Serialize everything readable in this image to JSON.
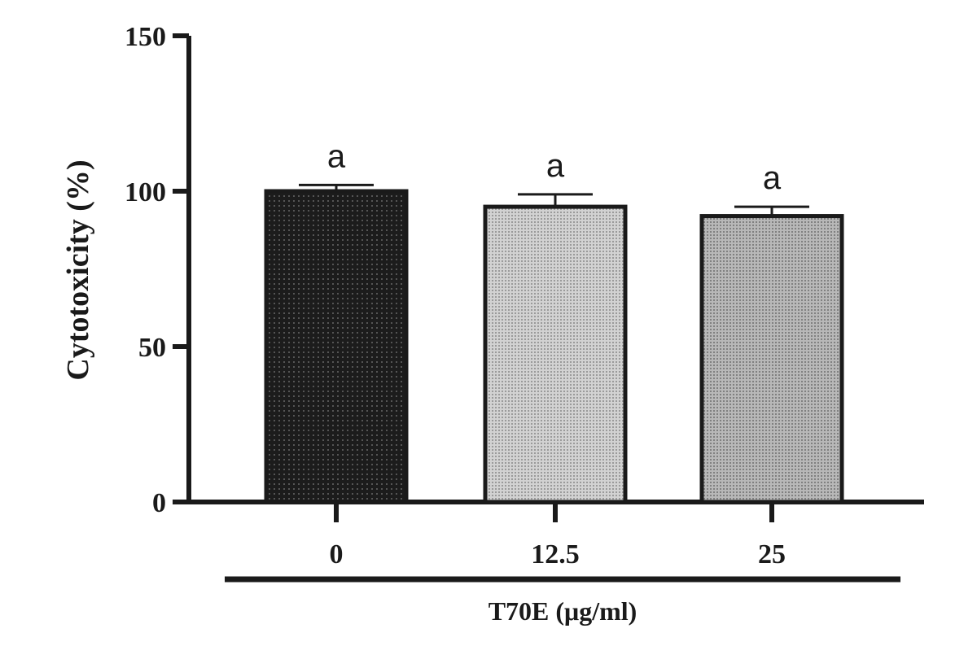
{
  "chart_data": {
    "type": "bar",
    "categories": [
      "0",
      "12.5",
      "25"
    ],
    "values": [
      100,
      95,
      92
    ],
    "errors": [
      2,
      4,
      3
    ],
    "significance": [
      "a",
      "a",
      "a"
    ],
    "bar_colors": [
      "#1c1c1c",
      "#c4c4c4",
      "#a8a8a8"
    ],
    "ylabel": "Cytotoxicity (%)",
    "xlabel": "T70E (μg/ml)",
    "ylim": [
      0,
      150
    ],
    "yticks": [
      0,
      50,
      100,
      150
    ],
    "ytick_labels": [
      "0",
      "50",
      "100",
      "150"
    ],
    "grid": false
  }
}
